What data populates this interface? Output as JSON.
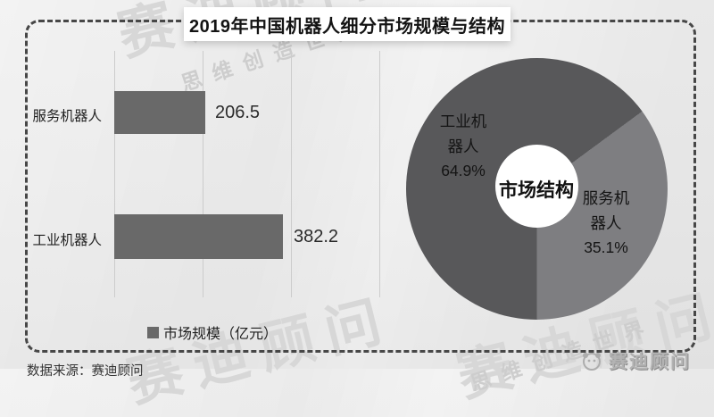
{
  "title": "2019年中国机器人细分市场规模与结构",
  "chart_data": [
    {
      "type": "bar",
      "orientation": "horizontal",
      "title": "2019年中国机器人细分市场规模与结构",
      "categories": [
        "服务机器人",
        "工业机器人"
      ],
      "values": [
        206.5,
        382.2
      ],
      "value_labels": [
        "206.5",
        "382.2"
      ],
      "series_label": "市场规模（亿元）",
      "xlabel": "",
      "ylabel": "",
      "xlim": [
        0,
        600
      ],
      "grid_step": 200,
      "grid": "vertical-only",
      "legend_position": "bottom",
      "bar_color": "#696969"
    },
    {
      "type": "pie",
      "donut": true,
      "center_label": "市场结构",
      "slices": [
        {
          "label": "工业机器人",
          "pct": 64.9,
          "pct_label": "64.9%",
          "color": "#58585a"
        },
        {
          "label": "服务机器人",
          "pct": 35.1,
          "pct_label": "35.1%",
          "color": "#7e7e81"
        }
      ]
    }
  ],
  "footer": {
    "source_note": "数据来源：赛迪顾问",
    "logo_text": "赛迪顾问"
  },
  "watermarks": {
    "brand": "赛迪顾问",
    "slogan": "思维创造世界"
  },
  "colors": {
    "bar": "#696969",
    "industrial_slice": "#58585a",
    "service_slice": "#7e7e81",
    "dashed_border": "#474747"
  }
}
